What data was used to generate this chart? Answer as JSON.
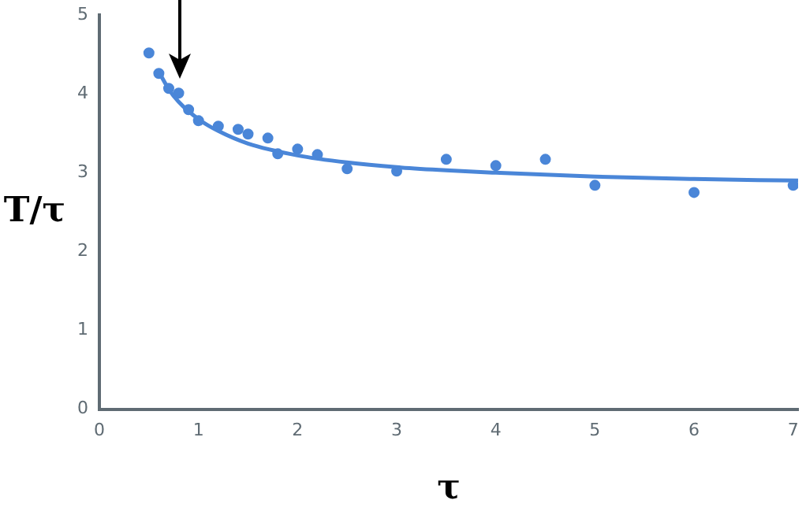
{
  "chart_data": {
    "type": "scatter",
    "xlabel": "τ",
    "ylabel": "T/τ",
    "xlim": [
      0,
      7.05
    ],
    "ylim": [
      0,
      5
    ],
    "xticks": [
      0,
      1,
      2,
      3,
      4,
      5,
      6,
      7
    ],
    "yticks": [
      0,
      1,
      2,
      3,
      4,
      5
    ],
    "grid": false,
    "legend": false,
    "marker": "circle",
    "series": [
      {
        "type": "scatter",
        "color": "#4a86d8",
        "x": [
          0.5,
          0.6,
          0.7,
          0.8,
          0.9,
          1.0,
          1.2,
          1.4,
          1.5,
          1.7,
          1.8,
          2.0,
          2.2,
          2.5,
          3.0,
          3.5,
          4.0,
          4.5,
          5.0,
          6.0,
          7.0
        ],
        "values": [
          4.52,
          4.26,
          4.07,
          4.01,
          3.8,
          3.66,
          3.59,
          3.55,
          3.49,
          3.44,
          3.24,
          3.3,
          3.23,
          3.05,
          3.02,
          3.17,
          3.09,
          3.17,
          2.84,
          2.75,
          2.84
        ]
      },
      {
        "type": "line",
        "color": "#4a86d8",
        "marker": "none",
        "line_style": "solid",
        "x": [
          0.6,
          0.7,
          0.8,
          1.0,
          1.2,
          1.5,
          2.0,
          2.5,
          3.0,
          3.5,
          4.0,
          5.0,
          6.0,
          7.05
        ],
        "values": [
          4.28,
          4.06,
          3.9,
          3.68,
          3.53,
          3.37,
          3.22,
          3.13,
          3.07,
          3.03,
          3.0,
          2.95,
          2.92,
          2.9
        ]
      }
    ]
  }
}
